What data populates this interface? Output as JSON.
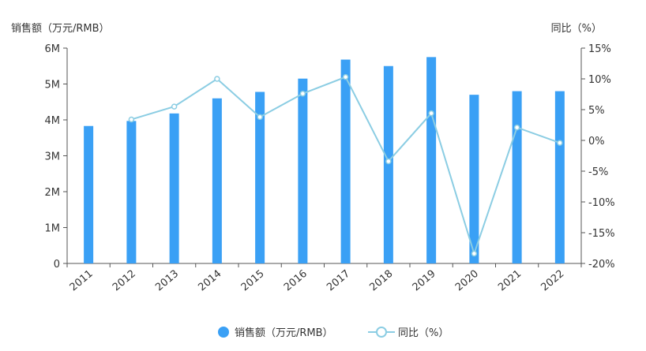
{
  "chart_data": {
    "type": "bar",
    "title": "",
    "categories": [
      "2011",
      "2012",
      "2013",
      "2014",
      "2015",
      "2016",
      "2017",
      "2018",
      "2019",
      "2020",
      "2021",
      "2022"
    ],
    "series": [
      {
        "name": "销售额（万元/RMB）",
        "kind": "bar",
        "axis": "left",
        "values": [
          3830000,
          3970000,
          4180000,
          4600000,
          4780000,
          5150000,
          5680000,
          5500000,
          5750000,
          4700000,
          4800000,
          4800000
        ]
      },
      {
        "name": "同比（%）",
        "kind": "line",
        "axis": "right",
        "values": [
          null,
          3.4,
          5.5,
          10.0,
          3.8,
          7.6,
          10.3,
          -3.4,
          4.4,
          -18.4,
          2.1,
          -0.4
        ]
      }
    ],
    "left_axis": {
      "label": "销售额（万元/RMB）",
      "ylim": [
        0,
        6000000
      ],
      "ticks": [
        0,
        1000000,
        2000000,
        3000000,
        4000000,
        5000000,
        6000000
      ],
      "tick_labels": [
        "0",
        "1M",
        "2M",
        "3M",
        "4M",
        "5M",
        "6M"
      ]
    },
    "right_axis": {
      "label": "同比（%）",
      "ylim": [
        -20,
        15
      ],
      "ticks": [
        -20,
        -15,
        -10,
        -5,
        0,
        5,
        10,
        15
      ],
      "tick_labels": [
        "-20%",
        "-15%",
        "-10%",
        "-5%",
        "0%",
        "5%",
        "10%",
        "15%"
      ]
    },
    "legend": {
      "placement": "bottom-center",
      "items": [
        "销售额（万元/RMB）",
        "同比（%）"
      ]
    },
    "grid": false,
    "colors": {
      "bar": "#3aa0f5",
      "line": "#8bcde3",
      "axis": "#555555"
    }
  }
}
